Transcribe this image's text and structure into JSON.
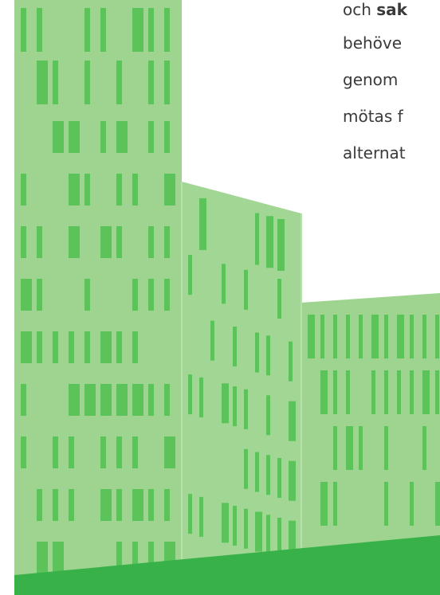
{
  "text_lines": [
    {
      "normal": "och ",
      "bold": "sak"
    },
    {
      "normal": "behöve"
    },
    {
      "normal": "genom"
    },
    {
      "normal": "mötas f"
    },
    {
      "normal": "alternat"
    }
  ]
}
